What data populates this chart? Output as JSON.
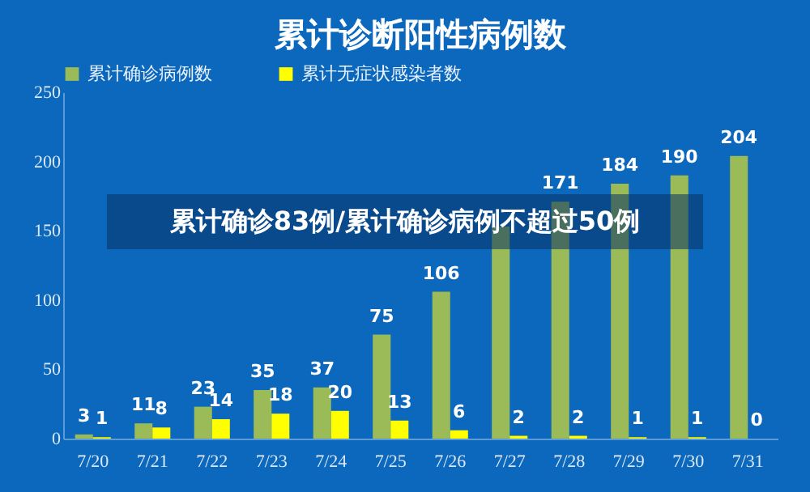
{
  "chart_data": {
    "type": "bar",
    "title": "累计诊断阳性病例数",
    "categories": [
      "7/20",
      "7/21",
      "7/22",
      "7/23",
      "7/24",
      "7/25",
      "7/26",
      "7/27",
      "7/28",
      "7/29",
      "7/30",
      "7/31"
    ],
    "series": [
      {
        "name": "累计确诊病例数",
        "color": "#9bbb59",
        "values": [
          3,
          11,
          23,
          35,
          37,
          75,
          106,
          153,
          171,
          184,
          190,
          204
        ],
        "value_labels": [
          "3",
          "11",
          "23",
          "35",
          "37",
          "75",
          "106",
          null,
          "171",
          "184",
          "190",
          "204"
        ]
      },
      {
        "name": "累计无症状感染者数",
        "color": "#ffff00",
        "values": [
          1,
          8,
          14,
          18,
          20,
          13,
          6,
          2,
          2,
          1,
          1,
          0
        ],
        "value_labels": [
          "1",
          "8",
          "14",
          "18",
          "20",
          "13",
          "6",
          "2",
          "2",
          "1",
          "1",
          "0"
        ]
      }
    ],
    "ylim": [
      0,
      250
    ],
    "yticks": [
      0,
      50,
      100,
      150,
      200,
      250
    ],
    "grid": false,
    "legend": "top",
    "annotations": [
      "累计确诊83例/累计确诊病例不超过50例"
    ]
  }
}
